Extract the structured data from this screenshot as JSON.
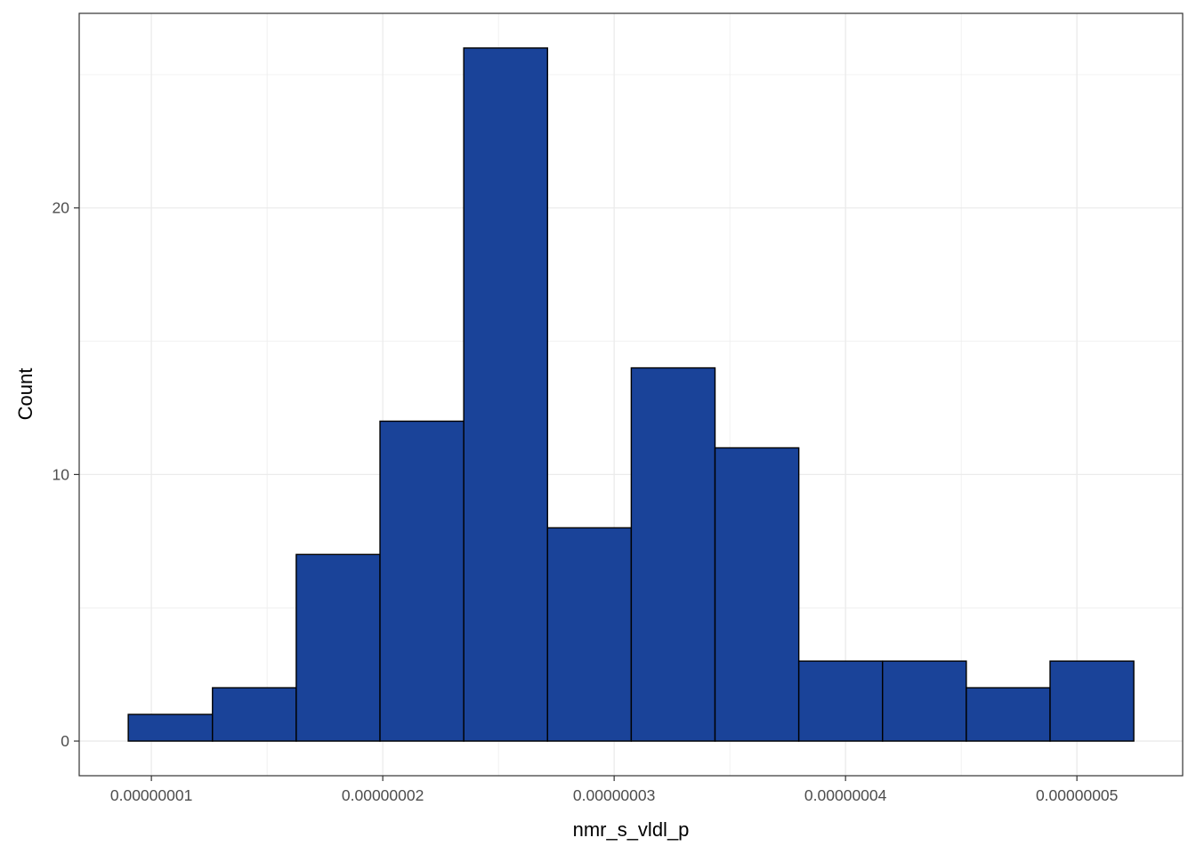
{
  "chart_data": {
    "type": "bar",
    "subtype": "histogram",
    "title": "",
    "xlabel": "nmr_s_vldl_p",
    "ylabel": "Count",
    "bins": [
      {
        "x0": 9e-09,
        "x1": 1.264e-08,
        "count": 1
      },
      {
        "x0": 1.264e-08,
        "x1": 1.626e-08,
        "count": 2
      },
      {
        "x0": 1.626e-08,
        "x1": 1.988e-08,
        "count": 7
      },
      {
        "x0": 1.988e-08,
        "x1": 2.35e-08,
        "count": 12
      },
      {
        "x0": 2.35e-08,
        "x1": 2.712e-08,
        "count": 26
      },
      {
        "x0": 2.712e-08,
        "x1": 3.074e-08,
        "count": 8
      },
      {
        "x0": 3.074e-08,
        "x1": 3.436e-08,
        "count": 14
      },
      {
        "x0": 3.436e-08,
        "x1": 3.798e-08,
        "count": 11
      },
      {
        "x0": 3.798e-08,
        "x1": 4.16e-08,
        "count": 3
      },
      {
        "x0": 4.16e-08,
        "x1": 4.522e-08,
        "count": 3
      },
      {
        "x0": 4.522e-08,
        "x1": 4.884e-08,
        "count": 2
      },
      {
        "x0": 4.884e-08,
        "x1": 5.246e-08,
        "count": 3
      }
    ],
    "x_ticks": [
      {
        "value": 1e-08,
        "label": "0.00000001"
      },
      {
        "value": 2e-08,
        "label": "0.00000002"
      },
      {
        "value": 3e-08,
        "label": "0.00000003"
      },
      {
        "value": 4e-08,
        "label": "0.00000004"
      },
      {
        "value": 5e-08,
        "label": "0.00000005"
      }
    ],
    "y_ticks": [
      {
        "value": 0,
        "label": "0"
      },
      {
        "value": 10,
        "label": "10"
      },
      {
        "value": 20,
        "label": "20"
      }
    ],
    "xlim": [
      6.88e-09,
      5.457e-08
    ],
    "ylim": [
      -1.3,
      27.3
    ],
    "grid": true,
    "fill_color": "#1A4399",
    "edge_color": "#000000",
    "grid_color": "#EBEBEB"
  }
}
